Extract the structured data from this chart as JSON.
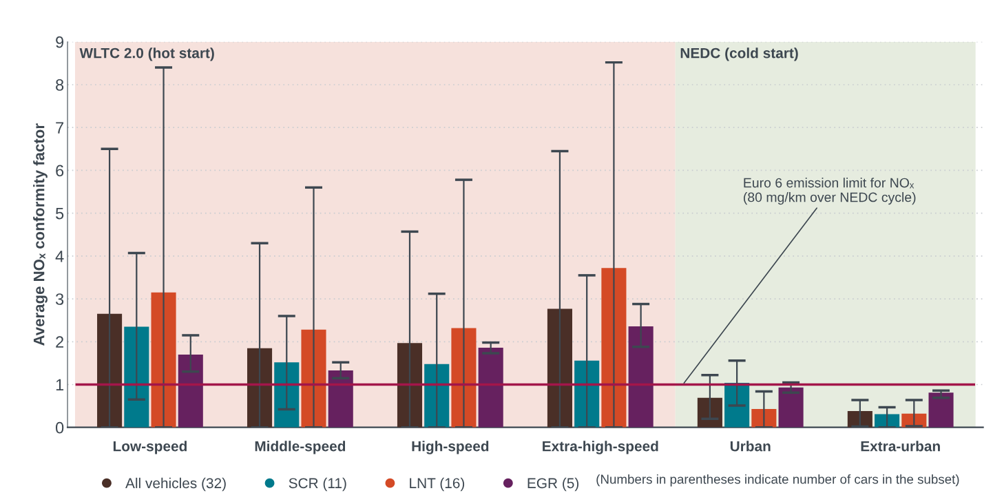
{
  "chart_data": {
    "type": "bar",
    "ylabel": "Average NOₓ conformity factor",
    "categories": [
      "Low-speed",
      "Middle-speed",
      "High-speed",
      "Extra-high-speed",
      "Urban",
      "Extra-urban"
    ],
    "series": [
      {
        "name": "All vehicles (32)",
        "color": "#4a2f27",
        "values": [
          2.65,
          1.85,
          1.97,
          2.77,
          0.69,
          0.38
        ],
        "errors": [
          [
            0,
            6.5
          ],
          [
            0,
            4.3
          ],
          [
            0,
            4.57
          ],
          [
            0,
            6.45
          ],
          [
            0.2,
            1.22
          ],
          [
            0.02,
            0.64
          ]
        ]
      },
      {
        "name": "SCR (11)",
        "color": "#007a8c",
        "values": [
          2.35,
          1.52,
          1.48,
          1.56,
          1.04,
          0.31
        ],
        "errors": [
          [
            0.65,
            4.07
          ],
          [
            0.42,
            2.6
          ],
          [
            0,
            3.12
          ],
          [
            0,
            3.55
          ],
          [
            0.51,
            1.56
          ],
          [
            0,
            0.47
          ]
        ]
      },
      {
        "name": "LNT (16)",
        "color": "#d44a26",
        "values": [
          3.15,
          2.28,
          2.32,
          3.72,
          0.43,
          0.32
        ],
        "errors": [
          [
            0,
            8.4
          ],
          [
            0,
            5.6
          ],
          [
            0,
            5.78
          ],
          [
            0,
            8.52
          ],
          [
            0,
            0.84
          ],
          [
            0.03,
            0.64
          ]
        ]
      },
      {
        "name": "EGR (5)",
        "color": "#66215f",
        "values": [
          1.7,
          1.33,
          1.86,
          2.36,
          0.93,
          0.81
        ],
        "errors": [
          [
            1.3,
            2.15
          ],
          [
            1.15,
            1.52
          ],
          [
            1.73,
            1.98
          ],
          [
            1.88,
            2.88
          ],
          [
            0.81,
            1.05
          ],
          [
            0.69,
            0.86
          ]
        ]
      }
    ],
    "ylim": [
      0,
      9
    ],
    "yticks": [
      0,
      1,
      2,
      3,
      4,
      5,
      6,
      7,
      8,
      9
    ],
    "grid": "y",
    "legend": "bottom",
    "ref_lines": [
      {
        "axis": "y",
        "value": 1,
        "label": "Euro 6 emission limit for NOₓ\n(80 mg/km over NEDC cycle)",
        "color": "#a3164a"
      }
    ],
    "bands": [
      {
        "axis": "x",
        "from": "Low-speed",
        "to": "Extra-high-speed",
        "label": "WLTC 2.0 (hot start)",
        "color": "#f6e1dc"
      },
      {
        "axis": "x",
        "from": "Urban",
        "to": "Extra-urban",
        "label": "NEDC (cold start)",
        "color": "#e6ecdf"
      }
    ],
    "annotations": [
      "(Numbers in parentheses indicate number of cars in the subset)"
    ]
  }
}
